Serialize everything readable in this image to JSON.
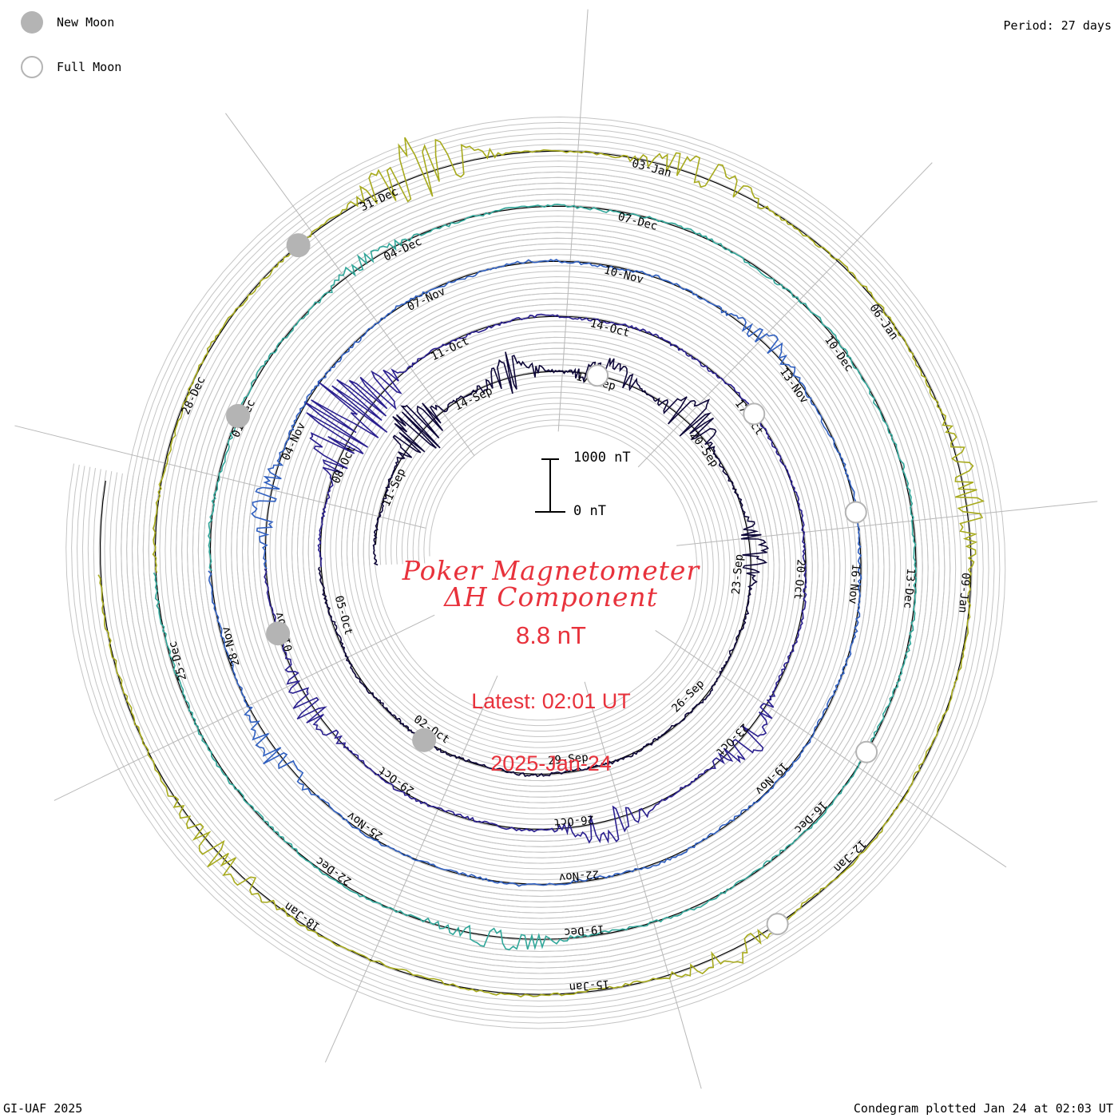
{
  "header": {
    "period": "Period: 27 days"
  },
  "legend": {
    "new_moon": "New Moon",
    "full_moon": "Full Moon"
  },
  "footer": {
    "left": "GI-UAF 2025",
    "right": "Condegram plotted Jan 24 at 02:03 UT"
  },
  "scale_bar": {
    "top_label": "1000 nT",
    "bottom_label": "0 nT"
  },
  "title": {
    "line1": "Poker Magnetometer",
    "line2": "ΔH Component",
    "value": "8.8 nT",
    "latest_line1": "Latest: 02:01 UT",
    "latest_line2": "2025-Jan-24"
  },
  "colors": {
    "annotation": "#e8323c",
    "moon": "#b4b4b4",
    "ring": "#c4c4c4",
    "spoke": "#b8b8b8",
    "rotations": [
      "#0d0638",
      "#2a1f8f",
      "#2f5fc0",
      "#31a79a",
      "#49b44a",
      "#a7aa1c",
      "#b8761a",
      "#a03a14"
    ]
  },
  "chart_data": {
    "type": "condegram",
    "period_days": 27,
    "direction": "clockwise",
    "scale_nT": [
      0,
      1000
    ],
    "rotations": [
      {
        "index": 1,
        "start": "09-Sep",
        "color": "#0d0638",
        "date_labels": [
          "11-Sep",
          "14-Sep",
          "17-Sep",
          "20-Sep",
          "23-Sep",
          "26-Sep",
          "29-Sep",
          "02-Oct",
          "05-Oct"
        ],
        "disturbances": [
          {
            "day": 3.5,
            "nT": 650
          },
          {
            "day": 6.0,
            "nT": 420
          },
          {
            "day": 8.2,
            "nT": 380
          },
          {
            "day": 10.3,
            "nT": 520
          },
          {
            "day": 13.5,
            "nT": 340
          }
        ]
      },
      {
        "index": 2,
        "start": "06-Oct",
        "color": "#2a1f8f",
        "date_labels": [
          "08-Oct",
          "11-Oct",
          "14-Oct",
          "17-Oct",
          "20-Oct",
          "23-Oct",
          "26-Oct",
          "29-Oct",
          "01-Nov"
        ],
        "disturbances": [
          {
            "day": 2.5,
            "nT": 900
          },
          {
            "day": 3.2,
            "nT": 760
          },
          {
            "day": 16.8,
            "nT": 380
          },
          {
            "day": 19.5,
            "nT": 420
          },
          {
            "day": 24.8,
            "nT": 350
          }
        ]
      },
      {
        "index": 3,
        "start": "02-Nov",
        "color": "#2f5fc0",
        "date_labels": [
          "04-Nov",
          "07-Nov",
          "10-Nov",
          "13-Nov",
          "16-Nov",
          "19-Nov",
          "22-Nov",
          "25-Nov",
          "28-Nov"
        ],
        "disturbances": [
          {
            "day": 1.0,
            "nT": 300
          },
          {
            "day": 10.2,
            "nT": 220
          },
          {
            "day": 24.5,
            "nT": 280
          }
        ]
      },
      {
        "index": 4,
        "start": "29-Nov",
        "color": "#31a79a",
        "date_labels": [
          "01-Dec",
          "04-Dec",
          "07-Dec",
          "10-Dec",
          "13-Dec",
          "16-Dec",
          "19-Dec",
          "22-Dec",
          "25-Dec"
        ],
        "disturbances": [
          {
            "day": 4.5,
            "nT": 150
          },
          {
            "day": 21.0,
            "nT": 250
          }
        ]
      },
      {
        "index": 5,
        "start": "26-Dec",
        "color": "#a7aa1c",
        "date_labels": [
          "28-Dec",
          "31-Dec",
          "03-Jan",
          "06-Jan",
          "09-Jan",
          "12-Jan",
          "15-Jan",
          "18-Jan"
        ],
        "disturbances": [
          {
            "day": 5.5,
            "nT": 700
          },
          {
            "day": 8.5,
            "nT": 380
          },
          {
            "day": 13.0,
            "nT": 320
          },
          {
            "day": 18.5,
            "nT": 250
          },
          {
            "day": 24.0,
            "nT": 300
          }
        ]
      }
    ],
    "full_moons": [
      "17-Sep",
      "17-Oct",
      "15-Nov",
      "15-Dec",
      "13-Jan"
    ],
    "new_moons": [
      "02-Oct",
      "01-Nov",
      "01-Dec",
      "30-Dec"
    ]
  }
}
